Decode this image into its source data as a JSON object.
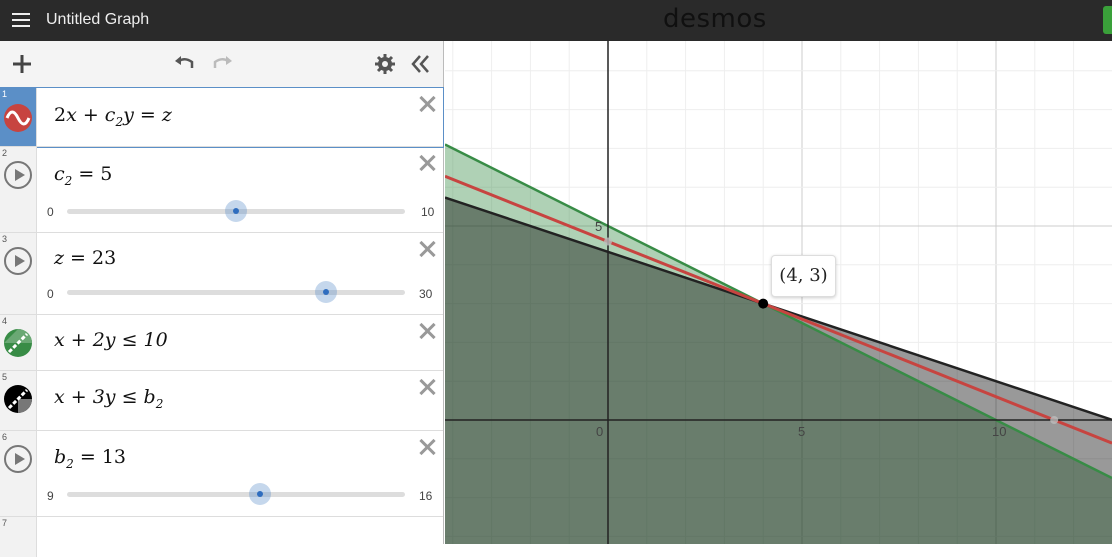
{
  "header": {
    "title": "Untitled Graph",
    "brand": "desmos"
  },
  "toolbar": {
    "add_icon": "plus-icon",
    "undo_icon": "undo-icon",
    "redo_icon": "redo-icon",
    "settings_icon": "gear-icon",
    "collapse_icon": "double-chevron-left-icon"
  },
  "expressions": [
    {
      "index": "1",
      "latex_parts": [
        "2",
        "x",
        " + ",
        "c",
        "2",
        "y",
        " = ",
        "z"
      ],
      "color": "#c74440",
      "active": true
    },
    {
      "index": "2",
      "var": "c",
      "sub": "2",
      "eq": " = ",
      "value": "5",
      "slider": {
        "min": "0",
        "max": "10",
        "fraction": 0.5
      }
    },
    {
      "index": "3",
      "var": "z",
      "eq": " = ",
      "value": "23",
      "slider": {
        "min": "0",
        "max": "30",
        "fraction": 0.767
      }
    },
    {
      "index": "4",
      "text": "x + 2y ≤ 10",
      "color": "#388c46"
    },
    {
      "index": "5",
      "text_main": "x + 3y ≤ b",
      "text_sub": "2",
      "color": "#000000"
    },
    {
      "index": "6",
      "var": "b",
      "sub": "2",
      "eq": " = ",
      "value": "13",
      "slider": {
        "min": "9",
        "max": "16",
        "fraction": 0.571
      }
    },
    {
      "index": "7"
    }
  ],
  "graph": {
    "x_ticks": [
      "0",
      "5",
      "10"
    ],
    "y_ticks": [
      "5"
    ],
    "point_label": "(4, 3)",
    "point": {
      "x": 4,
      "y": 3
    }
  },
  "colors": {
    "red": "#c74440",
    "green": "#388c46",
    "black": "#000000",
    "accent": "#5b8fc7"
  }
}
